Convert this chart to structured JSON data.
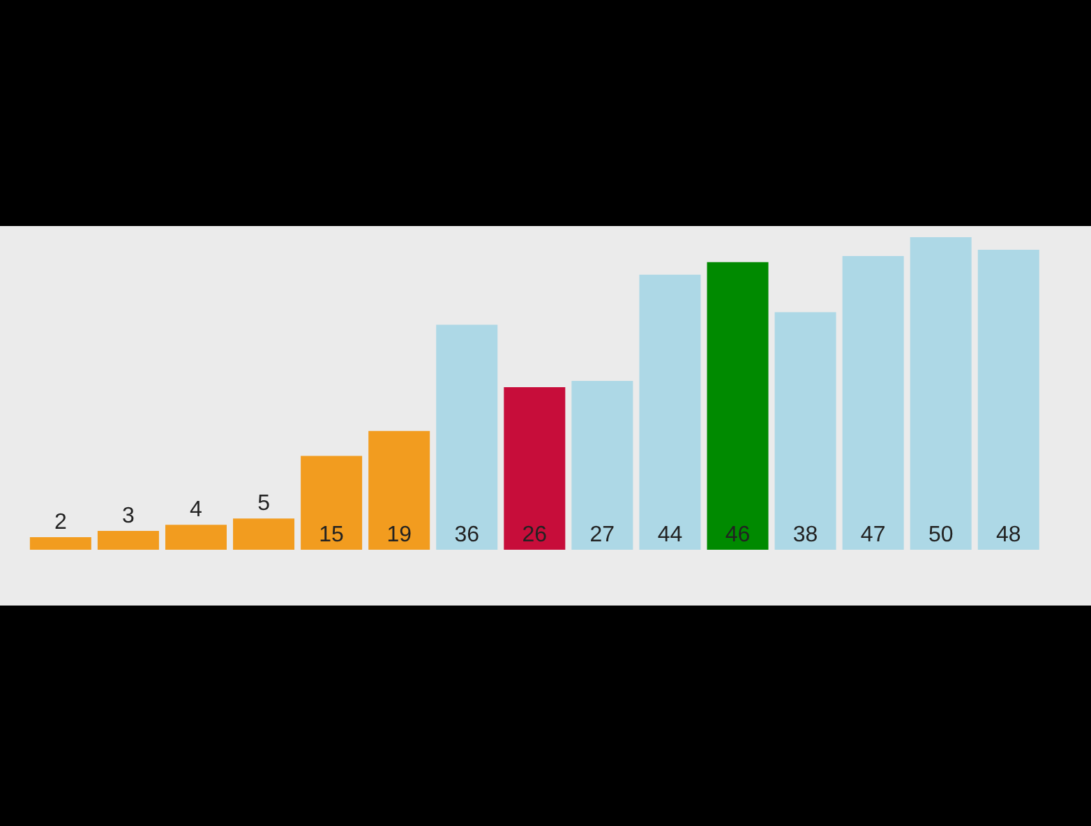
{
  "chart_data": {
    "type": "bar",
    "categories": [
      null,
      null,
      null,
      null,
      null,
      null,
      null,
      null,
      null,
      null,
      null,
      null,
      null,
      null,
      null
    ],
    "values": [
      2,
      3,
      4,
      5,
      15,
      19,
      36,
      26,
      27,
      44,
      46,
      38,
      47,
      50,
      48
    ],
    "colors": [
      "#f29c1f",
      "#f29c1f",
      "#f29c1f",
      "#f29c1f",
      "#f29c1f",
      "#f29c1f",
      "#add8e6",
      "#c70d3a",
      "#add8e6",
      "#add8e6",
      "#008a00",
      "#add8e6",
      "#add8e6",
      "#add8e6",
      "#add8e6"
    ],
    "data_labels": true,
    "grid": false,
    "legend": false
  }
}
